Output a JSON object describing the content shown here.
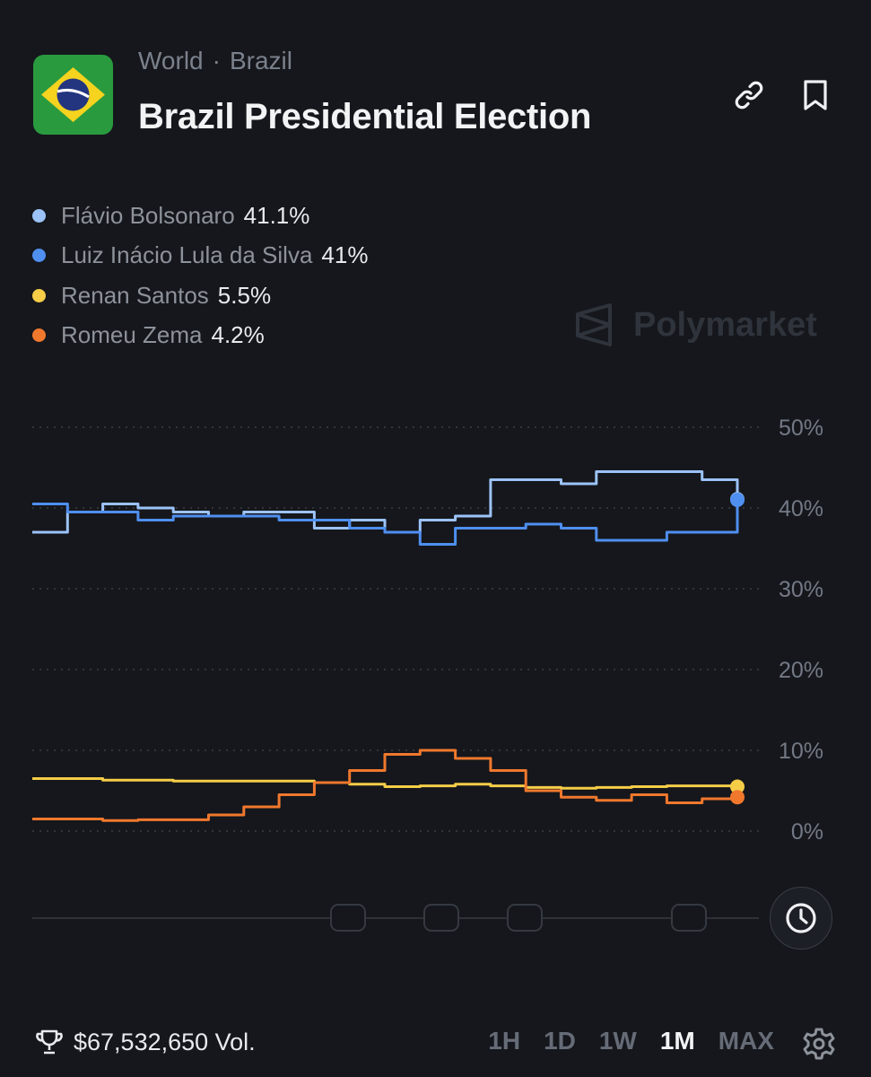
{
  "header": {
    "breadcrumb": [
      "World",
      "Brazil"
    ],
    "breadcrumb_sep": "·",
    "title": "Brazil Presidential Election",
    "icons": [
      "link-icon",
      "bookmark-icon"
    ]
  },
  "legend": [
    {
      "name": "Flávio Bolsonaro",
      "value": "41.1%",
      "color": "#9cc3f8"
    },
    {
      "name": "Luiz Inácio Lula da Silva",
      "value": "41%",
      "color": "#4f8ff0"
    },
    {
      "name": "Renan Santos",
      "value": "5.5%",
      "color": "#f5cd47"
    },
    {
      "name": "Romeu Zema",
      "value": "4.2%",
      "color": "#f0782d"
    }
  ],
  "watermark": "Polymarket",
  "chart_data": {
    "type": "line",
    "title": "",
    "xlabel": "",
    "ylabel": "",
    "ylim": [
      0,
      50
    ],
    "y_ticks": [
      "50%",
      "40%",
      "30%",
      "20%",
      "10%",
      "0%"
    ],
    "grid": true,
    "x": [
      0,
      0.05,
      0.1,
      0.15,
      0.2,
      0.25,
      0.3,
      0.35,
      0.4,
      0.45,
      0.5,
      0.55,
      0.6,
      0.65,
      0.7,
      0.75,
      0.8,
      0.85,
      0.9,
      0.95,
      1
    ],
    "series": [
      {
        "name": "Flávio Bolsonaro",
        "color": "#9cc3f8",
        "values": [
          37,
          39.5,
          40.5,
          40,
          39.5,
          39,
          39.5,
          39.5,
          37.5,
          38.5,
          37,
          38.5,
          39,
          43.5,
          43.5,
          43,
          44.5,
          44.5,
          44.5,
          43.5,
          41.1
        ]
      },
      {
        "name": "Luiz Inácio Lula da Silva",
        "color": "#4f8ff0",
        "values": [
          40.5,
          39.5,
          39.5,
          38.5,
          39,
          39,
          39,
          38.5,
          38.5,
          37.5,
          37,
          35.5,
          37.5,
          37.5,
          38,
          37.5,
          36,
          36,
          37,
          37,
          41
        ]
      },
      {
        "name": "Renan Santos",
        "color": "#f5cd47",
        "values": [
          6.5,
          6.5,
          6.3,
          6.3,
          6.2,
          6.2,
          6.2,
          6.2,
          6,
          5.8,
          5.5,
          5.6,
          5.8,
          5.6,
          5.4,
          5.3,
          5.4,
          5.5,
          5.6,
          5.6,
          5.5
        ]
      },
      {
        "name": "Romeu Zema",
        "color": "#f0782d",
        "values": [
          1.5,
          1.5,
          1.3,
          1.4,
          1.4,
          2,
          3,
          4.5,
          6,
          7.5,
          9.5,
          10,
          9,
          7.5,
          5,
          4.2,
          3.8,
          4.5,
          3.5,
          4,
          4.2
        ]
      }
    ]
  },
  "footer": {
    "volume": "$67,532,650 Vol.",
    "ranges": [
      "1H",
      "1D",
      "1W",
      "1M",
      "MAX"
    ],
    "active_range": "1M"
  }
}
